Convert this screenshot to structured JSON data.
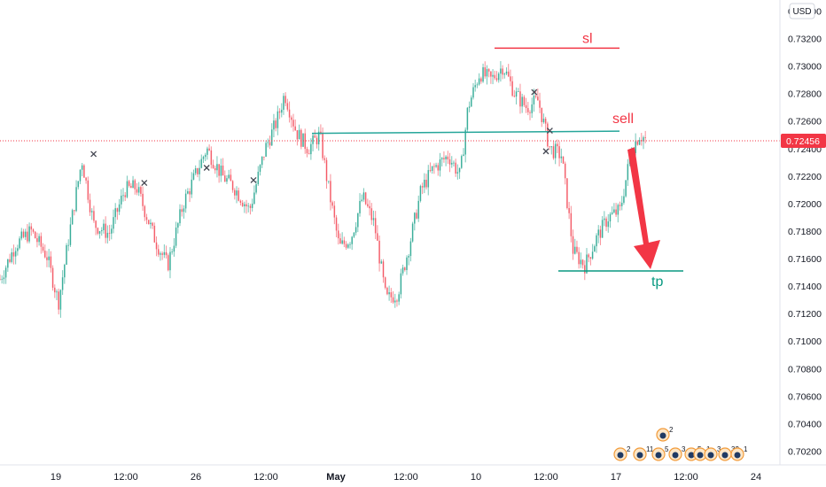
{
  "currency_badge": "USD",
  "last_price_label": "0.72456",
  "chart_data": {
    "type": "candlestick",
    "title": "",
    "xlabel": "",
    "ylabel": "",
    "ylim": [
      0.701,
      0.7348
    ],
    "y_ticks": [
      "0.73400",
      "0.73200",
      "0.73000",
      "0.72800",
      "0.72600",
      "0.72400",
      "0.72200",
      "0.72000",
      "0.71800",
      "0.71600",
      "0.71400",
      "0.71200",
      "0.71000",
      "0.70800",
      "0.70600",
      "0.70400",
      "0.70200"
    ],
    "x_ticks": [
      {
        "label": "19",
        "bold": false
      },
      {
        "label": "12:00",
        "bold": false
      },
      {
        "label": "26",
        "bold": false
      },
      {
        "label": "12:00",
        "bold": false
      },
      {
        "label": "May",
        "bold": true
      },
      {
        "label": "12:00",
        "bold": false
      },
      {
        "label": "10",
        "bold": false
      },
      {
        "label": "12:00",
        "bold": false
      },
      {
        "label": "17",
        "bold": false
      },
      {
        "label": "12:00",
        "bold": false
      },
      {
        "label": "24",
        "bold": false
      }
    ],
    "last_price": 0.72456,
    "price_path": [
      [
        0,
        0.7145
      ],
      [
        0.02,
        0.717
      ],
      [
        0.04,
        0.718
      ],
      [
        0.06,
        0.7162
      ],
      [
        0.075,
        0.7128
      ],
      [
        0.09,
        0.7182
      ],
      [
        0.105,
        0.7232
      ],
      [
        0.12,
        0.7185
      ],
      [
        0.14,
        0.7178
      ],
      [
        0.16,
        0.721
      ],
      [
        0.175,
        0.7212
      ],
      [
        0.2,
        0.7172
      ],
      [
        0.215,
        0.7155
      ],
      [
        0.235,
        0.72
      ],
      [
        0.25,
        0.722
      ],
      [
        0.265,
        0.724
      ],
      [
        0.285,
        0.722
      ],
      [
        0.3,
        0.7212
      ],
      [
        0.32,
        0.7195
      ],
      [
        0.34,
        0.724
      ],
      [
        0.355,
        0.726
      ],
      [
        0.365,
        0.728
      ],
      [
        0.38,
        0.7252
      ],
      [
        0.395,
        0.724
      ],
      [
        0.41,
        0.725
      ],
      [
        0.42,
        0.7215
      ],
      [
        0.435,
        0.7168
      ],
      [
        0.45,
        0.7175
      ],
      [
        0.465,
        0.7205
      ],
      [
        0.48,
        0.7185
      ],
      [
        0.495,
        0.713
      ],
      [
        0.51,
        0.7135
      ],
      [
        0.525,
        0.717
      ],
      [
        0.54,
        0.721
      ],
      [
        0.555,
        0.7225
      ],
      [
        0.575,
        0.7235
      ],
      [
        0.59,
        0.722
      ],
      [
        0.6,
        0.727
      ],
      [
        0.615,
        0.7295
      ],
      [
        0.63,
        0.729
      ],
      [
        0.645,
        0.73
      ],
      [
        0.66,
        0.728
      ],
      [
        0.675,
        0.727
      ],
      [
        0.69,
        0.7275
      ],
      [
        0.705,
        0.724
      ],
      [
        0.72,
        0.7235
      ],
      [
        0.735,
        0.7165
      ],
      [
        0.75,
        0.7155
      ],
      [
        0.765,
        0.7175
      ],
      [
        0.78,
        0.719
      ],
      [
        0.795,
        0.7195
      ],
      [
        0.81,
        0.724
      ],
      [
        0.82,
        0.725
      ],
      [
        0.83,
        0.7246
      ]
    ],
    "annotations": {
      "sl_label": "sl",
      "sell_label": "sell",
      "tp_label": "tp",
      "sl_level": 0.7313,
      "entry_level": 0.7252,
      "tp_level": 0.7151,
      "colors": {
        "sl": "#f23645",
        "sell": "#f23645",
        "tp": "#089981",
        "arrow": "#f23645",
        "up": "#089981",
        "down": "#f23645"
      }
    },
    "x_markers": [
      {
        "x": 0.12,
        "y": 0.7236
      },
      {
        "x": 0.185,
        "y": 0.7215
      },
      {
        "x": 0.265,
        "y": 0.7226
      },
      {
        "x": 0.325,
        "y": 0.7217
      },
      {
        "x": 0.685,
        "y": 0.7281
      },
      {
        "x": 0.705,
        "y": 0.7253
      },
      {
        "x": 0.7,
        "y": 0.7238
      }
    ],
    "grid": false
  },
  "events": [
    "2",
    "2",
    "11",
    "5",
    "3",
    "5",
    "1",
    "3",
    "33",
    "1"
  ]
}
